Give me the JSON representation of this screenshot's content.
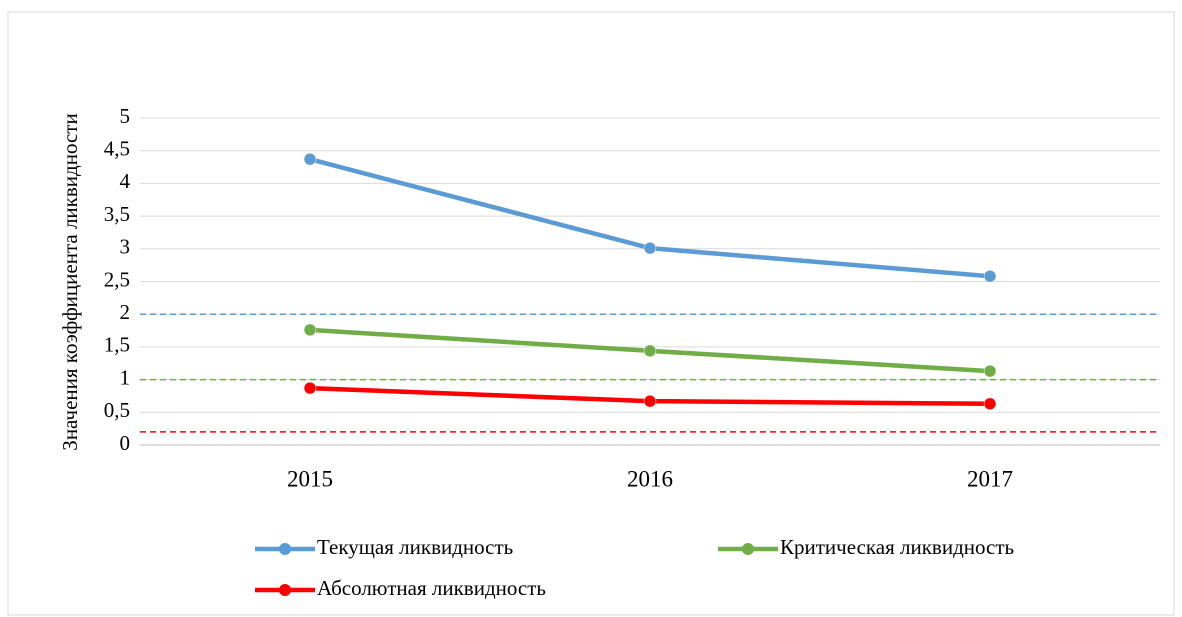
{
  "chart_data": {
    "type": "line",
    "y_label": "Значения коэффициента ликвидности",
    "categories": [
      "2015",
      "2016",
      "2017"
    ],
    "series": [
      {
        "name": "Текущая ликвидность",
        "color": "#5b9bd5",
        "values": [
          4.37,
          3.01,
          2.58
        ]
      },
      {
        "name": "Критическая ликвидность",
        "color": "#70ad47",
        "values": [
          1.76,
          1.44,
          1.13
        ]
      },
      {
        "name": "Абсолютная ликвидность",
        "color": "#ff0000",
        "values": [
          0.87,
          0.67,
          0.63
        ]
      }
    ],
    "reference_lines": [
      {
        "value": 2,
        "color": "#5b9bd5"
      },
      {
        "value": 1,
        "color": "#70ad47"
      },
      {
        "value": 0.2,
        "color": "#ff0000"
      }
    ],
    "ylim": [
      0,
      5
    ],
    "yticks": [
      0,
      {
        "value": 0.5,
        "label": "0,5"
      },
      1,
      {
        "value": 1.5,
        "label": "1,5"
      },
      2,
      {
        "value": 2.5,
        "label": "2,5"
      },
      3,
      {
        "value": 3.5,
        "label": "3,5"
      },
      4,
      {
        "value": 4.5,
        "label": "4,5"
      },
      5
    ],
    "grid": true,
    "legend": "bottom"
  }
}
